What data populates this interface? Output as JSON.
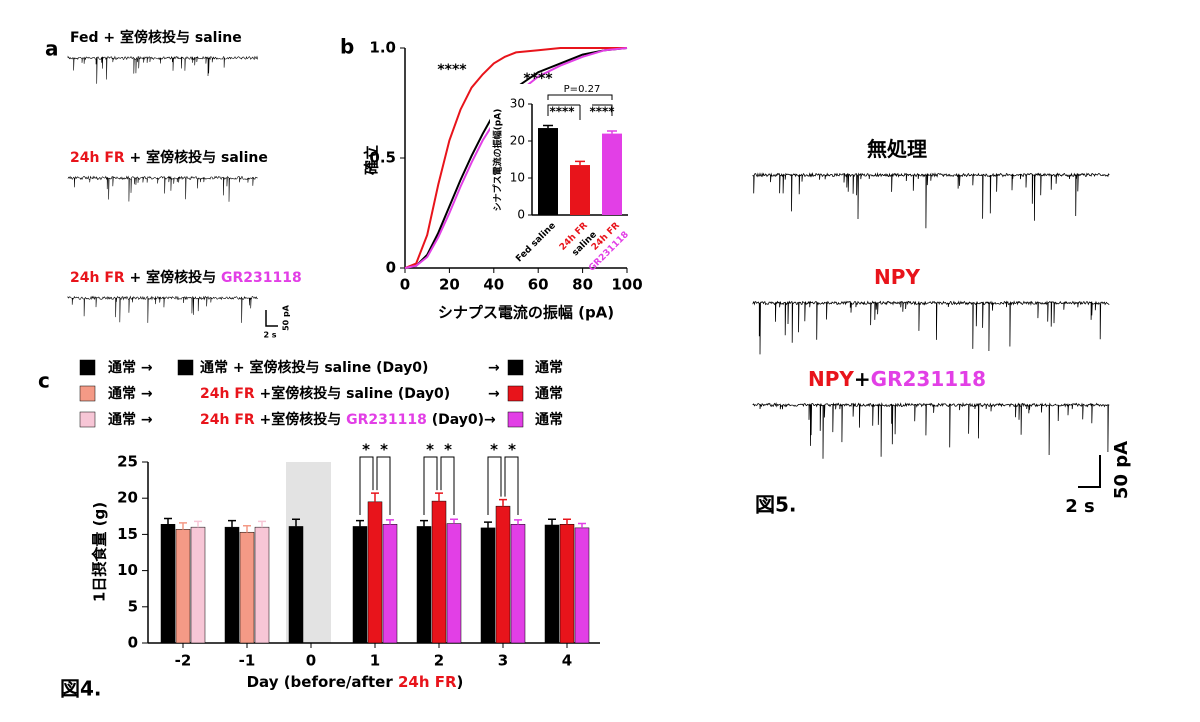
{
  "figure4": {
    "label": "図4.",
    "panel_a": {
      "panel_label": "a",
      "traces": [
        {
          "label": [
            {
              "text": "Fed + 室傍核投与 saline",
              "color": "#000000"
            }
          ]
        },
        {
          "label": [
            {
              "text": "24h FR",
              "color": "#e8141b"
            },
            {
              "text": " + 室傍核投与 saline",
              "color": "#000000"
            }
          ]
        },
        {
          "label": [
            {
              "text": "24h FR",
              "color": "#e8141b"
            },
            {
              "text": " + 室傍核投与 ",
              "color": "#000000"
            },
            {
              "text": "GR231118",
              "color": "#e23fe6"
            }
          ]
        }
      ],
      "scale_bar": {
        "y": "50 pA",
        "x": "2 s"
      }
    },
    "panel_b_label": "b",
    "panel_c_label": "c"
  },
  "chart_data": [
    {
      "type": "line",
      "xlabel": "シナプス電流の振幅 (pA)",
      "ylabel": "確立",
      "x": [
        0,
        5,
        10,
        15,
        20,
        25,
        30,
        35,
        40,
        45,
        50,
        60,
        70,
        80,
        90,
        100
      ],
      "series": [
        {
          "color": "#000000",
          "values": [
            0,
            0.01,
            0.06,
            0.16,
            0.28,
            0.4,
            0.51,
            0.61,
            0.7,
            0.76,
            0.82,
            0.89,
            0.93,
            0.97,
            0.99,
            1
          ]
        },
        {
          "color": "#e8141b",
          "values": [
            0,
            0.02,
            0.15,
            0.38,
            0.58,
            0.72,
            0.82,
            0.88,
            0.93,
            0.96,
            0.98,
            0.99,
            1,
            1,
            1,
            1
          ]
        },
        {
          "color": "#e23fe6",
          "values": [
            0,
            0.01,
            0.05,
            0.14,
            0.25,
            0.37,
            0.48,
            0.58,
            0.66,
            0.73,
            0.79,
            0.87,
            0.92,
            0.96,
            0.99,
            1
          ]
        }
      ],
      "xlim": [
        0,
        100
      ],
      "ylim": [
        0,
        1
      ],
      "xticks": [
        0,
        20,
        40,
        60,
        80,
        100
      ],
      "yticks": [
        0,
        0.5,
        {
          "value": 1,
          "label": "1.0"
        }
      ],
      "annotations": [
        "****",
        "****"
      ]
    },
    {
      "type": "bar",
      "ylabel": "シナプス電流の振幅(pA)",
      "categories": [
        [
          {
            "text": "Fed saline",
            "color": "#000000"
          }
        ],
        [
          {
            "text": "24h FR",
            "color": "#e8141b"
          },
          {
            "text": "saline",
            "color": "#000000"
          }
        ],
        [
          {
            "text": "24h FR",
            "color": "#e8141b"
          },
          {
            "text": "GR231118",
            "color": "#e23fe6"
          }
        ]
      ],
      "values": [
        23.5,
        13.5,
        22
      ],
      "errors": [
        0.7,
        1,
        0.7
      ],
      "colors": [
        "#000000",
        "#e8141b",
        "#e23fe6"
      ],
      "ylim": [
        0,
        30
      ],
      "yticks": [
        0,
        10,
        20,
        30
      ],
      "annotations": [
        "P=0.27",
        "****",
        "****"
      ]
    },
    {
      "type": "grouped-bar",
      "ylabel": "1日摂食量 (g)",
      "xlabel": [
        {
          "text": "Day (before/after ",
          "color": "#000000"
        },
        {
          "text": "24h FR",
          "color": "#e8141b"
        },
        {
          "text": ")",
          "color": "#000000"
        }
      ],
      "categories": [
        "-2",
        "-1",
        "0",
        "1",
        "2",
        "3",
        "4"
      ],
      "shaded_categories": [
        "0"
      ],
      "series": [
        {
          "colors": [
            "#000000",
            "#000000",
            "#000000",
            "#000000",
            "#000000",
            "#000000",
            "#000000"
          ],
          "values": [
            16.4,
            16,
            16.1,
            16.1,
            16.1,
            15.9,
            16.3
          ],
          "errors": [
            0.8,
            0.9,
            1,
            0.8,
            0.8,
            0.8,
            0.8
          ]
        },
        {
          "colors": [
            "#f49a86",
            "#f49a86",
            null,
            "#e8141b",
            "#e8141b",
            "#e8141b",
            "#e8141b"
          ],
          "values": [
            15.7,
            15.3,
            null,
            19.5,
            19.6,
            18.9,
            16.4
          ],
          "errors": [
            0.9,
            0.9,
            null,
            1.2,
            1.1,
            0.9,
            0.7
          ]
        },
        {
          "colors": [
            "#f7c6d6",
            "#f7c6d6",
            null,
            "#e23fe6",
            "#e23fe6",
            "#e23fe6",
            "#e23fe6"
          ],
          "values": [
            16,
            16,
            null,
            16.4,
            16.5,
            16.4,
            15.9
          ],
          "errors": [
            0.8,
            0.8,
            null,
            0.6,
            0.6,
            0.6,
            0.6
          ]
        }
      ],
      "legend": [
        [
          {
            "swatch": "#000000"
          },
          {
            "parts": [
              {
                "text": "通常 →",
                "color": "#000000"
              }
            ]
          },
          {
            "swatch": "#000000"
          },
          {
            "parts": [
              {
                "text": "通常 + 室傍核投与 saline (Day0)",
                "color": "#000000"
              }
            ]
          },
          {
            "parts": [
              {
                "text": "→",
                "color": "#000000"
              }
            ]
          },
          {
            "swatch": "#000000"
          },
          {
            "parts": [
              {
                "text": "通常",
                "color": "#000000"
              }
            ]
          }
        ],
        [
          {
            "swatch": "#f49a86"
          },
          {
            "parts": [
              {
                "text": "通常 →",
                "color": "#000000"
              }
            ]
          },
          {
            "parts": [
              {
                "text": "24h FR",
                "color": "#e8141b"
              },
              {
                "text": " +室傍核投与 saline (Day0)",
                "color": "#000000"
              }
            ]
          },
          {
            "parts": [
              {
                "text": "→",
                "color": "#000000"
              }
            ]
          },
          {
            "swatch": "#e8141b"
          },
          {
            "parts": [
              {
                "text": "通常",
                "color": "#000000"
              }
            ]
          }
        ],
        [
          {
            "swatch": "#f7c6d6"
          },
          {
            "parts": [
              {
                "text": "通常 →",
                "color": "#000000"
              }
            ]
          },
          {
            "parts": [
              {
                "text": "24h FR",
                "color": "#e8141b"
              },
              {
                "text": " +室傍核投与 ",
                "color": "#000000"
              },
              {
                "text": "GR231118",
                "color": "#e23fe6"
              },
              {
                "text": " (Day0)→",
                "color": "#000000"
              }
            ]
          },
          {
            "swatch": "#e23fe6"
          },
          {
            "parts": [
              {
                "text": "通常",
                "color": "#000000"
              }
            ]
          }
        ]
      ],
      "ylim": [
        0,
        25
      ],
      "yticks": [
        0,
        5,
        10,
        15,
        20,
        25
      ],
      "annotations": [
        "*",
        "*",
        "*",
        "*",
        "*",
        "*"
      ]
    }
  ],
  "figure5": {
    "label": "図5.",
    "traces": [
      {
        "label": [
          {
            "text": "無処理",
            "color": "#000000"
          }
        ]
      },
      {
        "label": [
          {
            "text": "NPY",
            "color": "#e8141b"
          }
        ]
      },
      {
        "label": [
          {
            "text": "NPY",
            "color": "#e8141b"
          },
          {
            "text": "+",
            "color": "#000000"
          },
          {
            "text": "GR231118",
            "color": "#e23fe6"
          }
        ]
      }
    ],
    "scale_bar": {
      "y": "50 pA",
      "x": "2 s"
    }
  }
}
